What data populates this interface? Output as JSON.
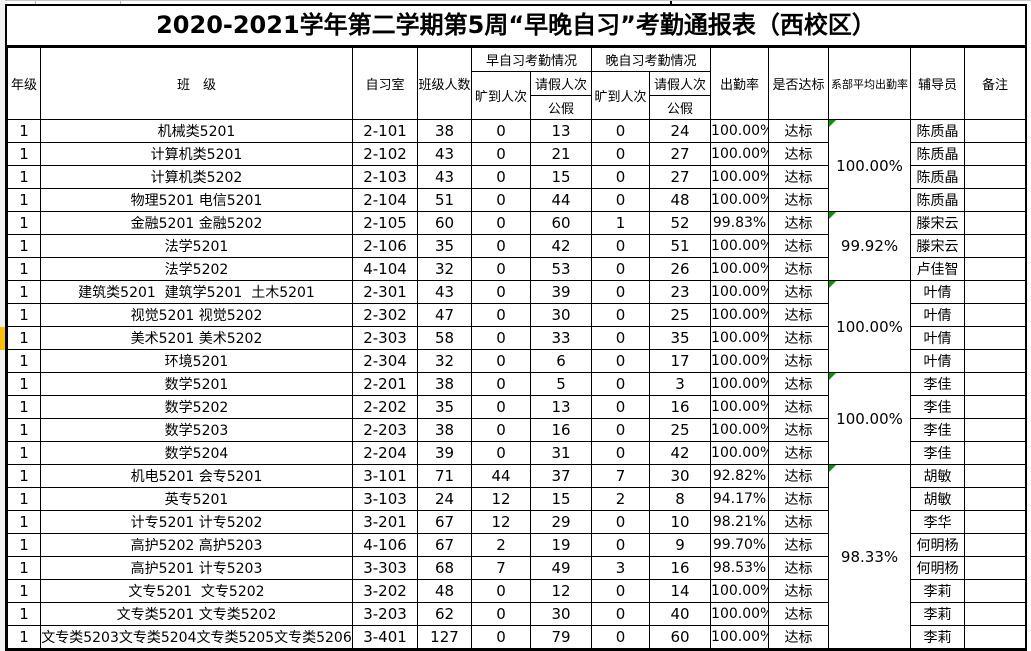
{
  "title": "2020-2021学年第二学期第5周“早晚自习”考勤通报表（西校区）",
  "header": {
    "grade": "年级",
    "class": "班　级",
    "study_room": "自习室",
    "class_size": "班级人数",
    "morning_group": "早自习考勤情况",
    "evening_group": "晚自习考勤情况",
    "absent_label": "旷到人次",
    "leave_label": "请假人次",
    "public_leave_label": "公假",
    "attendance_rate": "出勤率",
    "standard": "是否达标",
    "dept_avg_rate": "系部平均出勤率",
    "counselor": "辅导员",
    "remark": "备注"
  },
  "rows": [
    {
      "grade": "1",
      "class_name": "机械类5201",
      "room": "2-101",
      "size": "38",
      "morning_absent": "0",
      "morning_leave": "13",
      "evening_absent": "0",
      "evening_leave": "24",
      "rate": "100.00%",
      "status": "达标",
      "counselor": "陈质晶",
      "remark": ""
    },
    {
      "grade": "1",
      "class_name": "计算机类5201",
      "room": "2-102",
      "size": "43",
      "morning_absent": "0",
      "morning_leave": "21",
      "evening_absent": "0",
      "evening_leave": "27",
      "rate": "100.00%",
      "status": "达标",
      "counselor": "陈质晶",
      "remark": ""
    },
    {
      "grade": "1",
      "class_name": "计算机类5202",
      "room": "2-103",
      "size": "43",
      "morning_absent": "0",
      "morning_leave": "15",
      "evening_absent": "0",
      "evening_leave": "27",
      "rate": "100.00%",
      "status": "达标",
      "counselor": "陈质晶",
      "remark": ""
    },
    {
      "grade": "1",
      "class_name": "物理5201 电信5201",
      "room": "2-104",
      "size": "51",
      "morning_absent": "0",
      "morning_leave": "44",
      "evening_absent": "0",
      "evening_leave": "48",
      "rate": "100.00%",
      "status": "达标",
      "counselor": "陈质晶",
      "remark": ""
    },
    {
      "grade": "1",
      "class_name": "金融5201 金融5202",
      "room": "2-105",
      "size": "60",
      "morning_absent": "0",
      "morning_leave": "60",
      "evening_absent": "1",
      "evening_leave": "52",
      "rate": "99.83%",
      "status": "达标",
      "counselor": "滕宋云",
      "remark": ""
    },
    {
      "grade": "1",
      "class_name": "法学5201",
      "room": "2-106",
      "size": "35",
      "morning_absent": "0",
      "morning_leave": "42",
      "evening_absent": "0",
      "evening_leave": "51",
      "rate": "100.00%",
      "status": "达标",
      "counselor": "滕宋云",
      "remark": ""
    },
    {
      "grade": "1",
      "class_name": "法学5202",
      "room": "4-104",
      "size": "32",
      "morning_absent": "0",
      "morning_leave": "53",
      "evening_absent": "0",
      "evening_leave": "26",
      "rate": "100.00%",
      "status": "达标",
      "counselor": "卢佳智",
      "remark": ""
    },
    {
      "grade": "1",
      "class_name": "建筑类5201  建筑学5201  土木5201",
      "room": "2-301",
      "size": "43",
      "morning_absent": "0",
      "morning_leave": "39",
      "evening_absent": "0",
      "evening_leave": "23",
      "rate": "100.00%",
      "status": "达标",
      "counselor": "叶倩",
      "remark": ""
    },
    {
      "grade": "1",
      "class_name": "视觉5201 视觉5202",
      "room": "2-302",
      "size": "47",
      "morning_absent": "0",
      "morning_leave": "30",
      "evening_absent": "0",
      "evening_leave": "25",
      "rate": "100.00%",
      "status": "达标",
      "counselor": "叶倩",
      "remark": ""
    },
    {
      "grade": "1",
      "class_name": "美术5201 美术5202",
      "room": "2-303",
      "size": "58",
      "morning_absent": "0",
      "morning_leave": "33",
      "evening_absent": "0",
      "evening_leave": "35",
      "rate": "100.00%",
      "status": "达标",
      "counselor": "叶倩",
      "remark": ""
    },
    {
      "grade": "1",
      "class_name": "环境5201",
      "room": "2-304",
      "size": "32",
      "morning_absent": "0",
      "morning_leave": "6",
      "evening_absent": "0",
      "evening_leave": "17",
      "rate": "100.00%",
      "status": "达标",
      "counselor": "叶倩",
      "remark": ""
    },
    {
      "grade": "1",
      "class_name": "数学5201",
      "room": "2-201",
      "size": "38",
      "morning_absent": "0",
      "morning_leave": "5",
      "evening_absent": "0",
      "evening_leave": "3",
      "rate": "100.00%",
      "status": "达标",
      "counselor": "李佳",
      "remark": ""
    },
    {
      "grade": "1",
      "class_name": "数学5202",
      "room": "2-202",
      "size": "35",
      "morning_absent": "0",
      "morning_leave": "13",
      "evening_absent": "0",
      "evening_leave": "16",
      "rate": "100.00%",
      "status": "达标",
      "counselor": "李佳",
      "remark": ""
    },
    {
      "grade": "1",
      "class_name": "数学5203",
      "room": "2-203",
      "size": "38",
      "morning_absent": "0",
      "morning_leave": "16",
      "evening_absent": "0",
      "evening_leave": "25",
      "rate": "100.00%",
      "status": "达标",
      "counselor": "李佳",
      "remark": ""
    },
    {
      "grade": "1",
      "class_name": "数学5204",
      "room": "2-204",
      "size": "39",
      "morning_absent": "0",
      "morning_leave": "31",
      "evening_absent": "0",
      "evening_leave": "42",
      "rate": "100.00%",
      "status": "达标",
      "counselor": "李佳",
      "remark": ""
    },
    {
      "grade": "1",
      "class_name": "机电5201 会专5201",
      "room": "3-101",
      "size": "71",
      "morning_absent": "44",
      "morning_leave": "37",
      "evening_absent": "7",
      "evening_leave": "30",
      "rate": "92.82%",
      "status": "达标",
      "counselor": "胡敏",
      "remark": ""
    },
    {
      "grade": "1",
      "class_name": "英专5201",
      "room": "3-103",
      "size": "24",
      "morning_absent": "12",
      "morning_leave": "15",
      "evening_absent": "2",
      "evening_leave": "8",
      "rate": "94.17%",
      "status": "达标",
      "counselor": "胡敏",
      "remark": ""
    },
    {
      "grade": "1",
      "class_name": "计专5201 计专5202",
      "room": "3-201",
      "size": "67",
      "morning_absent": "12",
      "morning_leave": "29",
      "evening_absent": "0",
      "evening_leave": "10",
      "rate": "98.21%",
      "status": "达标",
      "counselor": "李华",
      "remark": ""
    },
    {
      "grade": "1",
      "class_name": "高护5202 高护5203",
      "room": "4-106",
      "size": "67",
      "morning_absent": "2",
      "morning_leave": "19",
      "evening_absent": "0",
      "evening_leave": "9",
      "rate": "99.70%",
      "status": "达标",
      "counselor": "何明杨",
      "remark": ""
    },
    {
      "grade": "1",
      "class_name": "高护5201 计专5203",
      "room": "3-303",
      "size": "68",
      "morning_absent": "7",
      "morning_leave": "49",
      "evening_absent": "3",
      "evening_leave": "16",
      "rate": "98.53%",
      "status": "达标",
      "counselor": "何明杨",
      "remark": ""
    },
    {
      "grade": "1",
      "class_name": "文专5201  文专5202",
      "room": "3-202",
      "size": "48",
      "morning_absent": "0",
      "morning_leave": "12",
      "evening_absent": "0",
      "evening_leave": "14",
      "rate": "100.00%",
      "status": "达标",
      "counselor": "李莉",
      "remark": ""
    },
    {
      "grade": "1",
      "class_name": "文专类5201 文专类5202",
      "room": "3-203",
      "size": "62",
      "morning_absent": "0",
      "morning_leave": "30",
      "evening_absent": "0",
      "evening_leave": "40",
      "rate": "100.00%",
      "status": "达标",
      "counselor": "李莉",
      "remark": ""
    },
    {
      "grade": "1",
      "class_name": "文专类5203文专类5204文专类5205文专类5206",
      "room": "3-401",
      "size": "127",
      "morning_absent": "0",
      "morning_leave": "79",
      "evening_absent": "0",
      "evening_leave": "60",
      "rate": "100.00%",
      "status": "达标",
      "counselor": "李莉",
      "remark": ""
    }
  ],
  "dept_avg_groups": [
    {
      "span": 4,
      "value": "100.00%"
    },
    {
      "span": 3,
      "value": "99.92%"
    },
    {
      "span": 4,
      "value": "100.00%"
    },
    {
      "span": 4,
      "value": "100.00%"
    },
    {
      "span": 8,
      "value": "98.33%"
    }
  ],
  "highlight": {
    "row_index": 9
  },
  "colors": {
    "error_triangle": "#009900",
    "row_marker": "#FFC000",
    "grid": "#000000"
  }
}
